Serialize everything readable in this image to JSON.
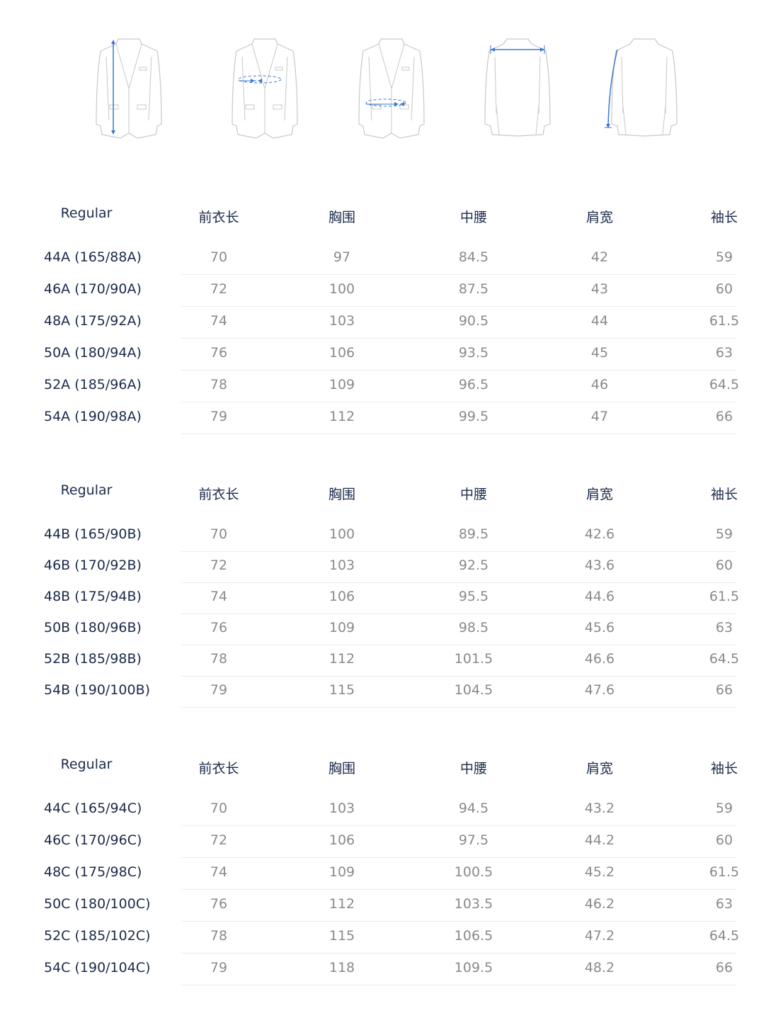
{
  "illustrations": [
    {
      "name": "front-length",
      "icon": "jacket-front-length-icon"
    },
    {
      "name": "chest",
      "icon": "jacket-chest-icon"
    },
    {
      "name": "waist",
      "icon": "jacket-waist-icon"
    },
    {
      "name": "shoulder",
      "icon": "jacket-shoulder-icon"
    },
    {
      "name": "sleeve",
      "icon": "jacket-sleeve-icon"
    }
  ],
  "accent_color": "#3a78d0",
  "columns": [
    "前衣长",
    "胸围",
    "中腰",
    "肩宽",
    "袖长"
  ],
  "tables": [
    {
      "fit": "Regular",
      "rows": [
        {
          "size": "44A (165/88A)",
          "values": [
            "70",
            "97",
            "84.5",
            "42",
            "59"
          ]
        },
        {
          "size": "46A (170/90A)",
          "values": [
            "72",
            "100",
            "87.5",
            "43",
            "60"
          ]
        },
        {
          "size": "48A (175/92A)",
          "values": [
            "74",
            "103",
            "90.5",
            "44",
            "61.5"
          ]
        },
        {
          "size": "50A (180/94A)",
          "values": [
            "76",
            "106",
            "93.5",
            "45",
            "63"
          ]
        },
        {
          "size": "52A (185/96A)",
          "values": [
            "78",
            "109",
            "96.5",
            "46",
            "64.5"
          ]
        },
        {
          "size": "54A (190/98A)",
          "values": [
            "79",
            "112",
            "99.5",
            "47",
            "66"
          ]
        }
      ]
    },
    {
      "fit": "Regular",
      "rows": [
        {
          "size": "44B (165/90B)",
          "values": [
            "70",
            "100",
            "89.5",
            "42.6",
            "59"
          ]
        },
        {
          "size": "46B (170/92B)",
          "values": [
            "72",
            "103",
            "92.5",
            "43.6",
            "60"
          ]
        },
        {
          "size": "48B (175/94B)",
          "values": [
            "74",
            "106",
            "95.5",
            "44.6",
            "61.5"
          ]
        },
        {
          "size": "50B (180/96B)",
          "values": [
            "76",
            "109",
            "98.5",
            "45.6",
            "63"
          ]
        },
        {
          "size": "52B (185/98B)",
          "values": [
            "78",
            "112",
            "101.5",
            "46.6",
            "64.5"
          ]
        },
        {
          "size": "54B (190/100B)",
          "values": [
            "79",
            "115",
            "104.5",
            "47.6",
            "66"
          ]
        }
      ]
    },
    {
      "fit": "Regular",
      "rows": [
        {
          "size": "44C (165/94C)",
          "values": [
            "70",
            "103",
            "94.5",
            "43.2",
            "59"
          ]
        },
        {
          "size": "46C (170/96C)",
          "values": [
            "72",
            "106",
            "97.5",
            "44.2",
            "60"
          ]
        },
        {
          "size": "48C (175/98C)",
          "values": [
            "74",
            "109",
            "100.5",
            "45.2",
            "61.5"
          ]
        },
        {
          "size": "50C (180/100C)",
          "values": [
            "76",
            "112",
            "103.5",
            "46.2",
            "63"
          ]
        },
        {
          "size": "52C (185/102C)",
          "values": [
            "78",
            "115",
            "106.5",
            "47.2",
            "64.5"
          ]
        },
        {
          "size": "54C (190/104C)",
          "values": [
            "79",
            "118",
            "109.5",
            "48.2",
            "66"
          ]
        }
      ]
    }
  ]
}
